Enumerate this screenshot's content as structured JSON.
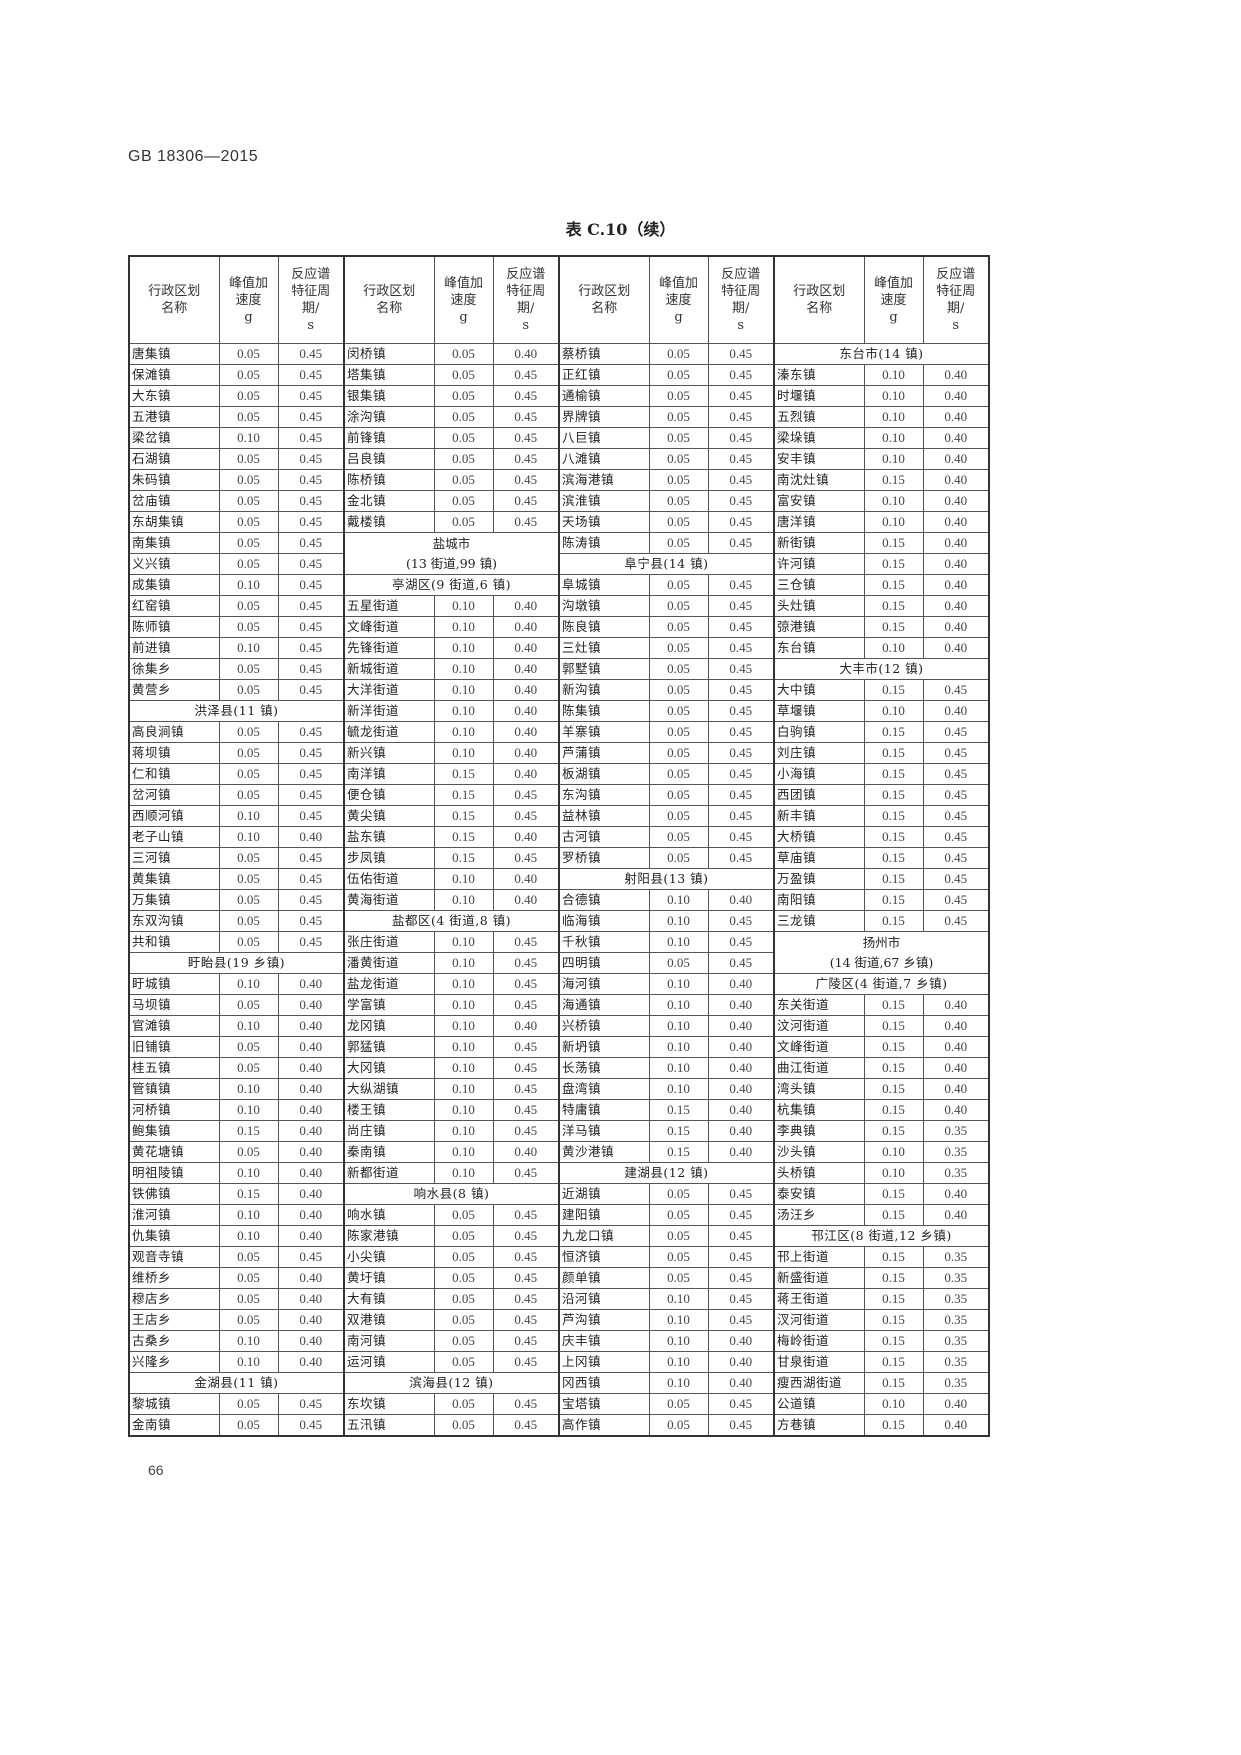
{
  "page": {
    "standard_code": "GB 18306—2015",
    "table_title": "表 C.10（续）",
    "page_number": "66"
  },
  "table": {
    "headers": {
      "name": "行政区划名称",
      "pga": "峰值加速度",
      "pga_unit": "g",
      "period": "反应谱特征周期/",
      "period_unit": "s"
    },
    "groups": [
      [
        {
          "name": "唐集镇",
          "g": "0.05",
          "t": "0.45"
        },
        {
          "name": "保滩镇",
          "g": "0.05",
          "t": "0.45"
        },
        {
          "name": "大东镇",
          "g": "0.05",
          "t": "0.45"
        },
        {
          "name": "五港镇",
          "g": "0.05",
          "t": "0.45"
        },
        {
          "name": "梁岔镇",
          "g": "0.10",
          "t": "0.45"
        },
        {
          "name": "石湖镇",
          "g": "0.05",
          "t": "0.45"
        },
        {
          "name": "朱码镇",
          "g": "0.05",
          "t": "0.45"
        },
        {
          "name": "岔庙镇",
          "g": "0.05",
          "t": "0.45"
        },
        {
          "name": "东胡集镇",
          "g": "0.05",
          "t": "0.45"
        },
        {
          "name": "南集镇",
          "g": "0.05",
          "t": "0.45"
        },
        {
          "name": "义兴镇",
          "g": "0.05",
          "t": "0.45"
        },
        {
          "name": "成集镇",
          "g": "0.10",
          "t": "0.45"
        },
        {
          "name": "红窑镇",
          "g": "0.05",
          "t": "0.45"
        },
        {
          "name": "陈师镇",
          "g": "0.05",
          "t": "0.45"
        },
        {
          "name": "前进镇",
          "g": "0.10",
          "t": "0.45"
        },
        {
          "name": "徐集乡",
          "g": "0.05",
          "t": "0.45"
        },
        {
          "name": "黄营乡",
          "g": "0.05",
          "t": "0.45"
        },
        {
          "header": "洪泽县(11 镇)"
        },
        {
          "name": "高良涧镇",
          "g": "0.05",
          "t": "0.45"
        },
        {
          "name": "蒋坝镇",
          "g": "0.05",
          "t": "0.45"
        },
        {
          "name": "仁和镇",
          "g": "0.05",
          "t": "0.45"
        },
        {
          "name": "岔河镇",
          "g": "0.05",
          "t": "0.45"
        },
        {
          "name": "西顺河镇",
          "g": "0.10",
          "t": "0.45"
        },
        {
          "name": "老子山镇",
          "g": "0.10",
          "t": "0.40"
        },
        {
          "name": "三河镇",
          "g": "0.05",
          "t": "0.45"
        },
        {
          "name": "黄集镇",
          "g": "0.05",
          "t": "0.45"
        },
        {
          "name": "万集镇",
          "g": "0.05",
          "t": "0.45"
        },
        {
          "name": "东双沟镇",
          "g": "0.05",
          "t": "0.45"
        },
        {
          "name": "共和镇",
          "g": "0.05",
          "t": "0.45"
        },
        {
          "header": "盱眙县(19 乡镇)"
        },
        {
          "name": "盱城镇",
          "g": "0.10",
          "t": "0.40"
        },
        {
          "name": "马坝镇",
          "g": "0.05",
          "t": "0.40"
        },
        {
          "name": "官滩镇",
          "g": "0.10",
          "t": "0.40"
        },
        {
          "name": "旧铺镇",
          "g": "0.05",
          "t": "0.40"
        },
        {
          "name": "桂五镇",
          "g": "0.05",
          "t": "0.40"
        },
        {
          "name": "管镇镇",
          "g": "0.10",
          "t": "0.40"
        },
        {
          "name": "河桥镇",
          "g": "0.10",
          "t": "0.40"
        },
        {
          "name": "鲍集镇",
          "g": "0.15",
          "t": "0.40"
        },
        {
          "name": "黄花塘镇",
          "g": "0.05",
          "t": "0.40"
        },
        {
          "name": "明祖陵镇",
          "g": "0.10",
          "t": "0.40"
        },
        {
          "name": "铁佛镇",
          "g": "0.15",
          "t": "0.40"
        },
        {
          "name": "淮河镇",
          "g": "0.10",
          "t": "0.40"
        },
        {
          "name": "仇集镇",
          "g": "0.10",
          "t": "0.40"
        },
        {
          "name": "观音寺镇",
          "g": "0.05",
          "t": "0.45"
        },
        {
          "name": "维桥乡",
          "g": "0.05",
          "t": "0.40"
        },
        {
          "name": "穆店乡",
          "g": "0.05",
          "t": "0.40"
        },
        {
          "name": "王店乡",
          "g": "0.05",
          "t": "0.40"
        },
        {
          "name": "古桑乡",
          "g": "0.10",
          "t": "0.40"
        },
        {
          "name": "兴隆乡",
          "g": "0.10",
          "t": "0.40"
        },
        {
          "header": "金湖县(11 镇)"
        },
        {
          "name": "黎城镇",
          "g": "0.05",
          "t": "0.45"
        },
        {
          "name": "金南镇",
          "g": "0.05",
          "t": "0.45"
        }
      ],
      [
        {
          "name": "闵桥镇",
          "g": "0.05",
          "t": "0.40"
        },
        {
          "name": "塔集镇",
          "g": "0.05",
          "t": "0.45"
        },
        {
          "name": "银集镇",
          "g": "0.05",
          "t": "0.45"
        },
        {
          "name": "涂沟镇",
          "g": "0.05",
          "t": "0.45"
        },
        {
          "name": "前锋镇",
          "g": "0.05",
          "t": "0.45"
        },
        {
          "name": "吕良镇",
          "g": "0.05",
          "t": "0.45"
        },
        {
          "name": "陈桥镇",
          "g": "0.05",
          "t": "0.45"
        },
        {
          "name": "金北镇",
          "g": "0.05",
          "t": "0.45"
        },
        {
          "name": "戴楼镇",
          "g": "0.05",
          "t": "0.45"
        },
        {
          "header": "盐城市",
          "sub": "(13 街道,99 镇)"
        },
        {
          "header": "亭湖区(9 街道,6 镇)"
        },
        {
          "name": "五星街道",
          "g": "0.10",
          "t": "0.40"
        },
        {
          "name": "文峰街道",
          "g": "0.10",
          "t": "0.40"
        },
        {
          "name": "先锋街道",
          "g": "0.10",
          "t": "0.40"
        },
        {
          "name": "新城街道",
          "g": "0.10",
          "t": "0.40"
        },
        {
          "name": "大洋街道",
          "g": "0.10",
          "t": "0.40"
        },
        {
          "name": "新洋街道",
          "g": "0.10",
          "t": "0.40"
        },
        {
          "name": "毓龙街道",
          "g": "0.10",
          "t": "0.40"
        },
        {
          "name": "新兴镇",
          "g": "0.10",
          "t": "0.40"
        },
        {
          "name": "南洋镇",
          "g": "0.15",
          "t": "0.40"
        },
        {
          "name": "便仓镇",
          "g": "0.15",
          "t": "0.45"
        },
        {
          "name": "黄尖镇",
          "g": "0.15",
          "t": "0.45"
        },
        {
          "name": "盐东镇",
          "g": "0.15",
          "t": "0.40"
        },
        {
          "name": "步凤镇",
          "g": "0.15",
          "t": "0.45"
        },
        {
          "name": "伍佑街道",
          "g": "0.10",
          "t": "0.40"
        },
        {
          "name": "黄海街道",
          "g": "0.10",
          "t": "0.40"
        },
        {
          "header": "盐都区(4 街道,8 镇)"
        },
        {
          "name": "张庄街道",
          "g": "0.10",
          "t": "0.45"
        },
        {
          "name": "潘黄街道",
          "g": "0.10",
          "t": "0.45"
        },
        {
          "name": "盐龙街道",
          "g": "0.10",
          "t": "0.45"
        },
        {
          "name": "学富镇",
          "g": "0.10",
          "t": "0.45"
        },
        {
          "name": "龙冈镇",
          "g": "0.10",
          "t": "0.40"
        },
        {
          "name": "郭猛镇",
          "g": "0.10",
          "t": "0.45"
        },
        {
          "name": "大冈镇",
          "g": "0.10",
          "t": "0.45"
        },
        {
          "name": "大纵湖镇",
          "g": "0.10",
          "t": "0.45"
        },
        {
          "name": "楼王镇",
          "g": "0.10",
          "t": "0.45"
        },
        {
          "name": "尚庄镇",
          "g": "0.10",
          "t": "0.45"
        },
        {
          "name": "秦南镇",
          "g": "0.10",
          "t": "0.40"
        },
        {
          "name": "新都街道",
          "g": "0.10",
          "t": "0.45"
        },
        {
          "header": "响水县(8 镇)"
        },
        {
          "name": "响水镇",
          "g": "0.05",
          "t": "0.45"
        },
        {
          "name": "陈家港镇",
          "g": "0.05",
          "t": "0.45"
        },
        {
          "name": "小尖镇",
          "g": "0.05",
          "t": "0.45"
        },
        {
          "name": "黄圩镇",
          "g": "0.05",
          "t": "0.45"
        },
        {
          "name": "大有镇",
          "g": "0.05",
          "t": "0.45"
        },
        {
          "name": "双港镇",
          "g": "0.05",
          "t": "0.45"
        },
        {
          "name": "南河镇",
          "g": "0.05",
          "t": "0.45"
        },
        {
          "name": "运河镇",
          "g": "0.05",
          "t": "0.45"
        },
        {
          "header": "滨海县(12 镇)"
        },
        {
          "name": "东坎镇",
          "g": "0.05",
          "t": "0.45"
        },
        {
          "name": "五汛镇",
          "g": "0.05",
          "t": "0.45"
        }
      ],
      [
        {
          "name": "蔡桥镇",
          "g": "0.05",
          "t": "0.45"
        },
        {
          "name": "正红镇",
          "g": "0.05",
          "t": "0.45"
        },
        {
          "name": "通榆镇",
          "g": "0.05",
          "t": "0.45"
        },
        {
          "name": "界牌镇",
          "g": "0.05",
          "t": "0.45"
        },
        {
          "name": "八巨镇",
          "g": "0.05",
          "t": "0.45"
        },
        {
          "name": "八滩镇",
          "g": "0.05",
          "t": "0.45"
        },
        {
          "name": "滨海港镇",
          "g": "0.05",
          "t": "0.45"
        },
        {
          "name": "滨淮镇",
          "g": "0.05",
          "t": "0.45"
        },
        {
          "name": "天场镇",
          "g": "0.05",
          "t": "0.45"
        },
        {
          "name": "陈涛镇",
          "g": "0.05",
          "t": "0.45"
        },
        {
          "header": "阜宁县(14 镇)"
        },
        {
          "name": "阜城镇",
          "g": "0.05",
          "t": "0.45"
        },
        {
          "name": "沟墩镇",
          "g": "0.05",
          "t": "0.45"
        },
        {
          "name": "陈良镇",
          "g": "0.05",
          "t": "0.45"
        },
        {
          "name": "三灶镇",
          "g": "0.05",
          "t": "0.45"
        },
        {
          "name": "郭墅镇",
          "g": "0.05",
          "t": "0.45"
        },
        {
          "name": "新沟镇",
          "g": "0.05",
          "t": "0.45"
        },
        {
          "name": "陈集镇",
          "g": "0.05",
          "t": "0.45"
        },
        {
          "name": "羊寨镇",
          "g": "0.05",
          "t": "0.45"
        },
        {
          "name": "芦蒲镇",
          "g": "0.05",
          "t": "0.45"
        },
        {
          "name": "板湖镇",
          "g": "0.05",
          "t": "0.45"
        },
        {
          "name": "东沟镇",
          "g": "0.05",
          "t": "0.45"
        },
        {
          "name": "益林镇",
          "g": "0.05",
          "t": "0.45"
        },
        {
          "name": "古河镇",
          "g": "0.05",
          "t": "0.45"
        },
        {
          "name": "罗桥镇",
          "g": "0.05",
          "t": "0.45"
        },
        {
          "header": "射阳县(13 镇)"
        },
        {
          "name": "合德镇",
          "g": "0.10",
          "t": "0.40"
        },
        {
          "name": "临海镇",
          "g": "0.10",
          "t": "0.45"
        },
        {
          "name": "千秋镇",
          "g": "0.10",
          "t": "0.45"
        },
        {
          "name": "四明镇",
          "g": "0.05",
          "t": "0.45"
        },
        {
          "name": "海河镇",
          "g": "0.10",
          "t": "0.40"
        },
        {
          "name": "海通镇",
          "g": "0.10",
          "t": "0.40"
        },
        {
          "name": "兴桥镇",
          "g": "0.10",
          "t": "0.40"
        },
        {
          "name": "新坍镇",
          "g": "0.10",
          "t": "0.40"
        },
        {
          "name": "长荡镇",
          "g": "0.10",
          "t": "0.40"
        },
        {
          "name": "盘湾镇",
          "g": "0.10",
          "t": "0.40"
        },
        {
          "name": "特庸镇",
          "g": "0.15",
          "t": "0.40"
        },
        {
          "name": "洋马镇",
          "g": "0.15",
          "t": "0.40"
        },
        {
          "name": "黄沙港镇",
          "g": "0.15",
          "t": "0.40"
        },
        {
          "header": "建湖县(12 镇)"
        },
        {
          "name": "近湖镇",
          "g": "0.05",
          "t": "0.45"
        },
        {
          "name": "建阳镇",
          "g": "0.05",
          "t": "0.45"
        },
        {
          "name": "九龙口镇",
          "g": "0.05",
          "t": "0.45"
        },
        {
          "name": "恒济镇",
          "g": "0.05",
          "t": "0.45"
        },
        {
          "name": "颜单镇",
          "g": "0.05",
          "t": "0.45"
        },
        {
          "name": "沿河镇",
          "g": "0.10",
          "t": "0.45"
        },
        {
          "name": "芦沟镇",
          "g": "0.10",
          "t": "0.45"
        },
        {
          "name": "庆丰镇",
          "g": "0.10",
          "t": "0.40"
        },
        {
          "name": "上冈镇",
          "g": "0.10",
          "t": "0.40"
        },
        {
          "name": "冈西镇",
          "g": "0.10",
          "t": "0.40"
        },
        {
          "name": "宝塔镇",
          "g": "0.05",
          "t": "0.45"
        },
        {
          "name": "高作镇",
          "g": "0.05",
          "t": "0.45"
        }
      ],
      [
        {
          "header": "东台市(14 镇)"
        },
        {
          "name": "溱东镇",
          "g": "0.10",
          "t": "0.40"
        },
        {
          "name": "时堰镇",
          "g": "0.10",
          "t": "0.40"
        },
        {
          "name": "五烈镇",
          "g": "0.10",
          "t": "0.40"
        },
        {
          "name": "梁垛镇",
          "g": "0.10",
          "t": "0.40"
        },
        {
          "name": "安丰镇",
          "g": "0.10",
          "t": "0.40"
        },
        {
          "name": "南沈灶镇",
          "g": "0.15",
          "t": "0.40"
        },
        {
          "name": "富安镇",
          "g": "0.10",
          "t": "0.40"
        },
        {
          "name": "唐洋镇",
          "g": "0.10",
          "t": "0.40"
        },
        {
          "name": "新街镇",
          "g": "0.15",
          "t": "0.40"
        },
        {
          "name": "许河镇",
          "g": "0.15",
          "t": "0.40"
        },
        {
          "name": "三仓镇",
          "g": "0.15",
          "t": "0.40"
        },
        {
          "name": "头灶镇",
          "g": "0.15",
          "t": "0.40"
        },
        {
          "name": "弶港镇",
          "g": "0.15",
          "t": "0.40"
        },
        {
          "name": "东台镇",
          "g": "0.10",
          "t": "0.40"
        },
        {
          "header": "大丰市(12 镇)"
        },
        {
          "name": "大中镇",
          "g": "0.15",
          "t": "0.45"
        },
        {
          "name": "草堰镇",
          "g": "0.10",
          "t": "0.40"
        },
        {
          "name": "白驹镇",
          "g": "0.15",
          "t": "0.45"
        },
        {
          "name": "刘庄镇",
          "g": "0.15",
          "t": "0.45"
        },
        {
          "name": "小海镇",
          "g": "0.15",
          "t": "0.45"
        },
        {
          "name": "西团镇",
          "g": "0.15",
          "t": "0.45"
        },
        {
          "name": "新丰镇",
          "g": "0.15",
          "t": "0.45"
        },
        {
          "name": "大桥镇",
          "g": "0.15",
          "t": "0.45"
        },
        {
          "name": "草庙镇",
          "g": "0.15",
          "t": "0.45"
        },
        {
          "name": "万盈镇",
          "g": "0.15",
          "t": "0.45"
        },
        {
          "name": "南阳镇",
          "g": "0.15",
          "t": "0.45"
        },
        {
          "name": "三龙镇",
          "g": "0.15",
          "t": "0.45"
        },
        {
          "header": "扬州市",
          "sub": "(14 街道,67 乡镇)"
        },
        {
          "header": "广陵区(4 街道,7 乡镇)"
        },
        {
          "name": "东关街道",
          "g": "0.15",
          "t": "0.40"
        },
        {
          "name": "汶河街道",
          "g": "0.15",
          "t": "0.40"
        },
        {
          "name": "文峰街道",
          "g": "0.15",
          "t": "0.40"
        },
        {
          "name": "曲江街道",
          "g": "0.15",
          "t": "0.40"
        },
        {
          "name": "湾头镇",
          "g": "0.15",
          "t": "0.40"
        },
        {
          "name": "杭集镇",
          "g": "0.15",
          "t": "0.40"
        },
        {
          "name": "李典镇",
          "g": "0.15",
          "t": "0.35"
        },
        {
          "name": "沙头镇",
          "g": "0.10",
          "t": "0.35"
        },
        {
          "name": "头桥镇",
          "g": "0.10",
          "t": "0.35"
        },
        {
          "name": "泰安镇",
          "g": "0.15",
          "t": "0.40"
        },
        {
          "name": "汤汪乡",
          "g": "0.15",
          "t": "0.40"
        },
        {
          "header": "邗江区(8 街道,12 乡镇)"
        },
        {
          "name": "邗上街道",
          "g": "0.15",
          "t": "0.35"
        },
        {
          "name": "新盛街道",
          "g": "0.15",
          "t": "0.35"
        },
        {
          "name": "蒋王街道",
          "g": "0.15",
          "t": "0.35"
        },
        {
          "name": "汊河街道",
          "g": "0.15",
          "t": "0.35"
        },
        {
          "name": "梅岭街道",
          "g": "0.15",
          "t": "0.35"
        },
        {
          "name": "甘泉街道",
          "g": "0.15",
          "t": "0.35"
        },
        {
          "name": "瘦西湖街道",
          "g": "0.15",
          "t": "0.35"
        },
        {
          "name": "公道镇",
          "g": "0.10",
          "t": "0.40"
        },
        {
          "name": "方巷镇",
          "g": "0.15",
          "t": "0.40"
        }
      ]
    ]
  }
}
